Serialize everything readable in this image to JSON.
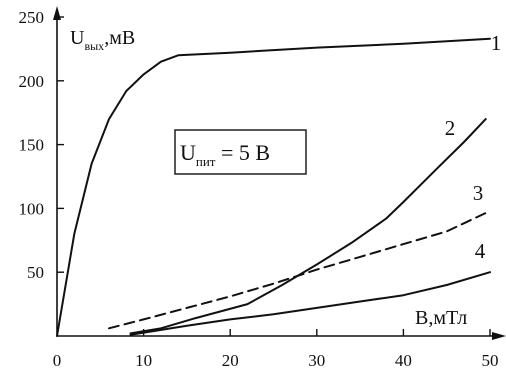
{
  "chart_data": {
    "type": "line",
    "xlabel": {
      "main": "B",
      "sub": "",
      "unit": ",мТл"
    },
    "ylabel": {
      "main": "U",
      "sub": "вых",
      "unit": ",мВ"
    },
    "xlim": [
      0,
      50
    ],
    "ylim": [
      0,
      250
    ],
    "x_ticks": [
      "0",
      "10",
      "20",
      "30",
      "40",
      "50"
    ],
    "y_ticks": [
      "50",
      "100",
      "150",
      "200",
      "250"
    ],
    "annotation": {
      "main": "U",
      "sub": "пит",
      "rest": " = 5 В"
    },
    "grid": false,
    "series": [
      {
        "name": "1",
        "style": "solid",
        "x": [
          0,
          2,
          4,
          6,
          8,
          10,
          12,
          14,
          20,
          30,
          40,
          50
        ],
        "y": [
          0,
          80,
          135,
          170,
          192,
          205,
          215,
          220,
          222,
          226,
          229,
          233
        ]
      },
      {
        "name": "2",
        "style": "solid",
        "x": [
          8.5,
          12,
          16,
          22,
          26,
          30,
          34,
          38,
          40,
          44,
          47,
          49.5
        ],
        "y": [
          2,
          6,
          14,
          25,
          40,
          56,
          73,
          92,
          105,
          132,
          152,
          170
        ]
      },
      {
        "name": "3",
        "style": "dashed",
        "x": [
          6,
          10,
          15,
          20,
          25,
          30,
          35,
          40,
          45,
          50
        ],
        "y": [
          6,
          13,
          22,
          31,
          41,
          52,
          62,
          72,
          82,
          98
        ]
      },
      {
        "name": "4",
        "style": "solid",
        "x": [
          8.5,
          15,
          20,
          25,
          30,
          35,
          40,
          45,
          50
        ],
        "y": [
          1,
          8,
          13,
          17,
          22,
          27,
          32,
          40,
          50
        ]
      }
    ]
  }
}
